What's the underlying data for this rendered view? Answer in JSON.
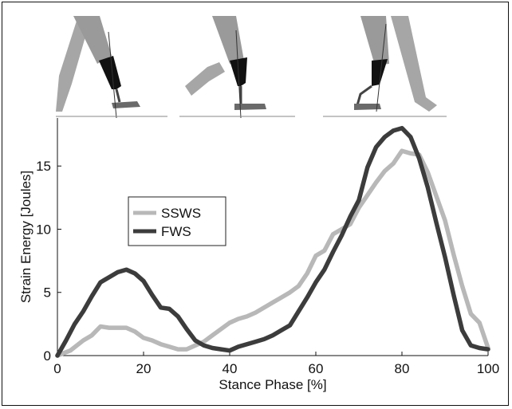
{
  "chart_data": {
    "type": "line",
    "xlabel": "Stance Phase [%]",
    "ylabel": "Strain Energy [Joules]",
    "xlim": [
      0,
      100
    ],
    "ylim": [
      0,
      18.8
    ],
    "x_ticks": [
      0,
      20,
      40,
      60,
      80,
      100
    ],
    "y_ticks": [
      0,
      5,
      10,
      15
    ],
    "grid": false,
    "legend_placement": "upper-left",
    "series": [
      {
        "name": "SSWS",
        "color": "#b8b8b8",
        "points": [
          [
            0,
            0
          ],
          [
            3,
            0.4
          ],
          [
            6,
            1.2
          ],
          [
            8,
            1.6
          ],
          [
            10,
            2.3
          ],
          [
            12,
            2.2
          ],
          [
            14,
            2.2
          ],
          [
            16,
            2.2
          ],
          [
            18,
            1.9
          ],
          [
            20,
            1.4
          ],
          [
            22,
            1.2
          ],
          [
            24,
            0.9
          ],
          [
            26,
            0.7
          ],
          [
            28,
            0.5
          ],
          [
            30,
            0.5
          ],
          [
            32,
            0.8
          ],
          [
            34,
            1.1
          ],
          [
            36,
            1.6
          ],
          [
            38,
            2.1
          ],
          [
            40,
            2.6
          ],
          [
            42,
            2.9
          ],
          [
            44,
            3.1
          ],
          [
            46,
            3.4
          ],
          [
            48,
            3.8
          ],
          [
            50,
            4.2
          ],
          [
            52,
            4.6
          ],
          [
            54,
            5.0
          ],
          [
            56,
            5.5
          ],
          [
            58,
            6.5
          ],
          [
            60,
            7.9
          ],
          [
            62,
            8.3
          ],
          [
            64,
            9.6
          ],
          [
            66,
            10.0
          ],
          [
            68,
            10.4
          ],
          [
            70,
            11.7
          ],
          [
            72,
            12.7
          ],
          [
            74,
            13.7
          ],
          [
            76,
            14.6
          ],
          [
            78,
            15.2
          ],
          [
            80,
            16.2
          ],
          [
            82,
            16.0
          ],
          [
            84,
            15.9
          ],
          [
            86,
            14.5
          ],
          [
            88,
            12.6
          ],
          [
            90,
            10.7
          ],
          [
            92,
            8.0
          ],
          [
            94,
            5.5
          ],
          [
            96,
            3.3
          ],
          [
            98,
            2.6
          ],
          [
            100,
            0.6
          ]
        ]
      },
      {
        "name": "FWS",
        "color": "#3c3c3c",
        "points": [
          [
            0,
            0
          ],
          [
            2,
            1.2
          ],
          [
            4,
            2.5
          ],
          [
            6,
            3.5
          ],
          [
            8,
            4.7
          ],
          [
            10,
            5.8
          ],
          [
            12,
            6.2
          ],
          [
            14,
            6.6
          ],
          [
            16,
            6.8
          ],
          [
            18,
            6.5
          ],
          [
            20,
            5.9
          ],
          [
            22,
            4.8
          ],
          [
            24,
            3.8
          ],
          [
            26,
            3.7
          ],
          [
            28,
            3.1
          ],
          [
            30,
            2.1
          ],
          [
            32,
            1.2
          ],
          [
            34,
            0.8
          ],
          [
            36,
            0.6
          ],
          [
            38,
            0.5
          ],
          [
            40,
            0.4
          ],
          [
            42,
            0.7
          ],
          [
            44,
            0.9
          ],
          [
            46,
            1.1
          ],
          [
            48,
            1.3
          ],
          [
            50,
            1.6
          ],
          [
            52,
            2.0
          ],
          [
            54,
            2.4
          ],
          [
            56,
            3.5
          ],
          [
            58,
            4.6
          ],
          [
            60,
            5.8
          ],
          [
            62,
            6.8
          ],
          [
            64,
            8.2
          ],
          [
            66,
            9.5
          ],
          [
            68,
            11.0
          ],
          [
            70,
            12.3
          ],
          [
            72,
            14.9
          ],
          [
            74,
            16.5
          ],
          [
            76,
            17.3
          ],
          [
            78,
            17.8
          ],
          [
            80,
            18.0
          ],
          [
            82,
            17.3
          ],
          [
            84,
            15.6
          ],
          [
            86,
            13.3
          ],
          [
            88,
            10.5
          ],
          [
            90,
            7.8
          ],
          [
            92,
            4.8
          ],
          [
            94,
            2.0
          ],
          [
            96,
            0.8
          ],
          [
            98,
            0.6
          ],
          [
            100,
            0.5
          ]
        ]
      }
    ],
    "title": ""
  },
  "illustration": {
    "frames": [
      "foot-flat-frame",
      "mid-stance-frame",
      "push-off-frame"
    ],
    "limb_color": "#8a8a8a",
    "socket_color": "#111111",
    "pylon_color": "#555555"
  }
}
